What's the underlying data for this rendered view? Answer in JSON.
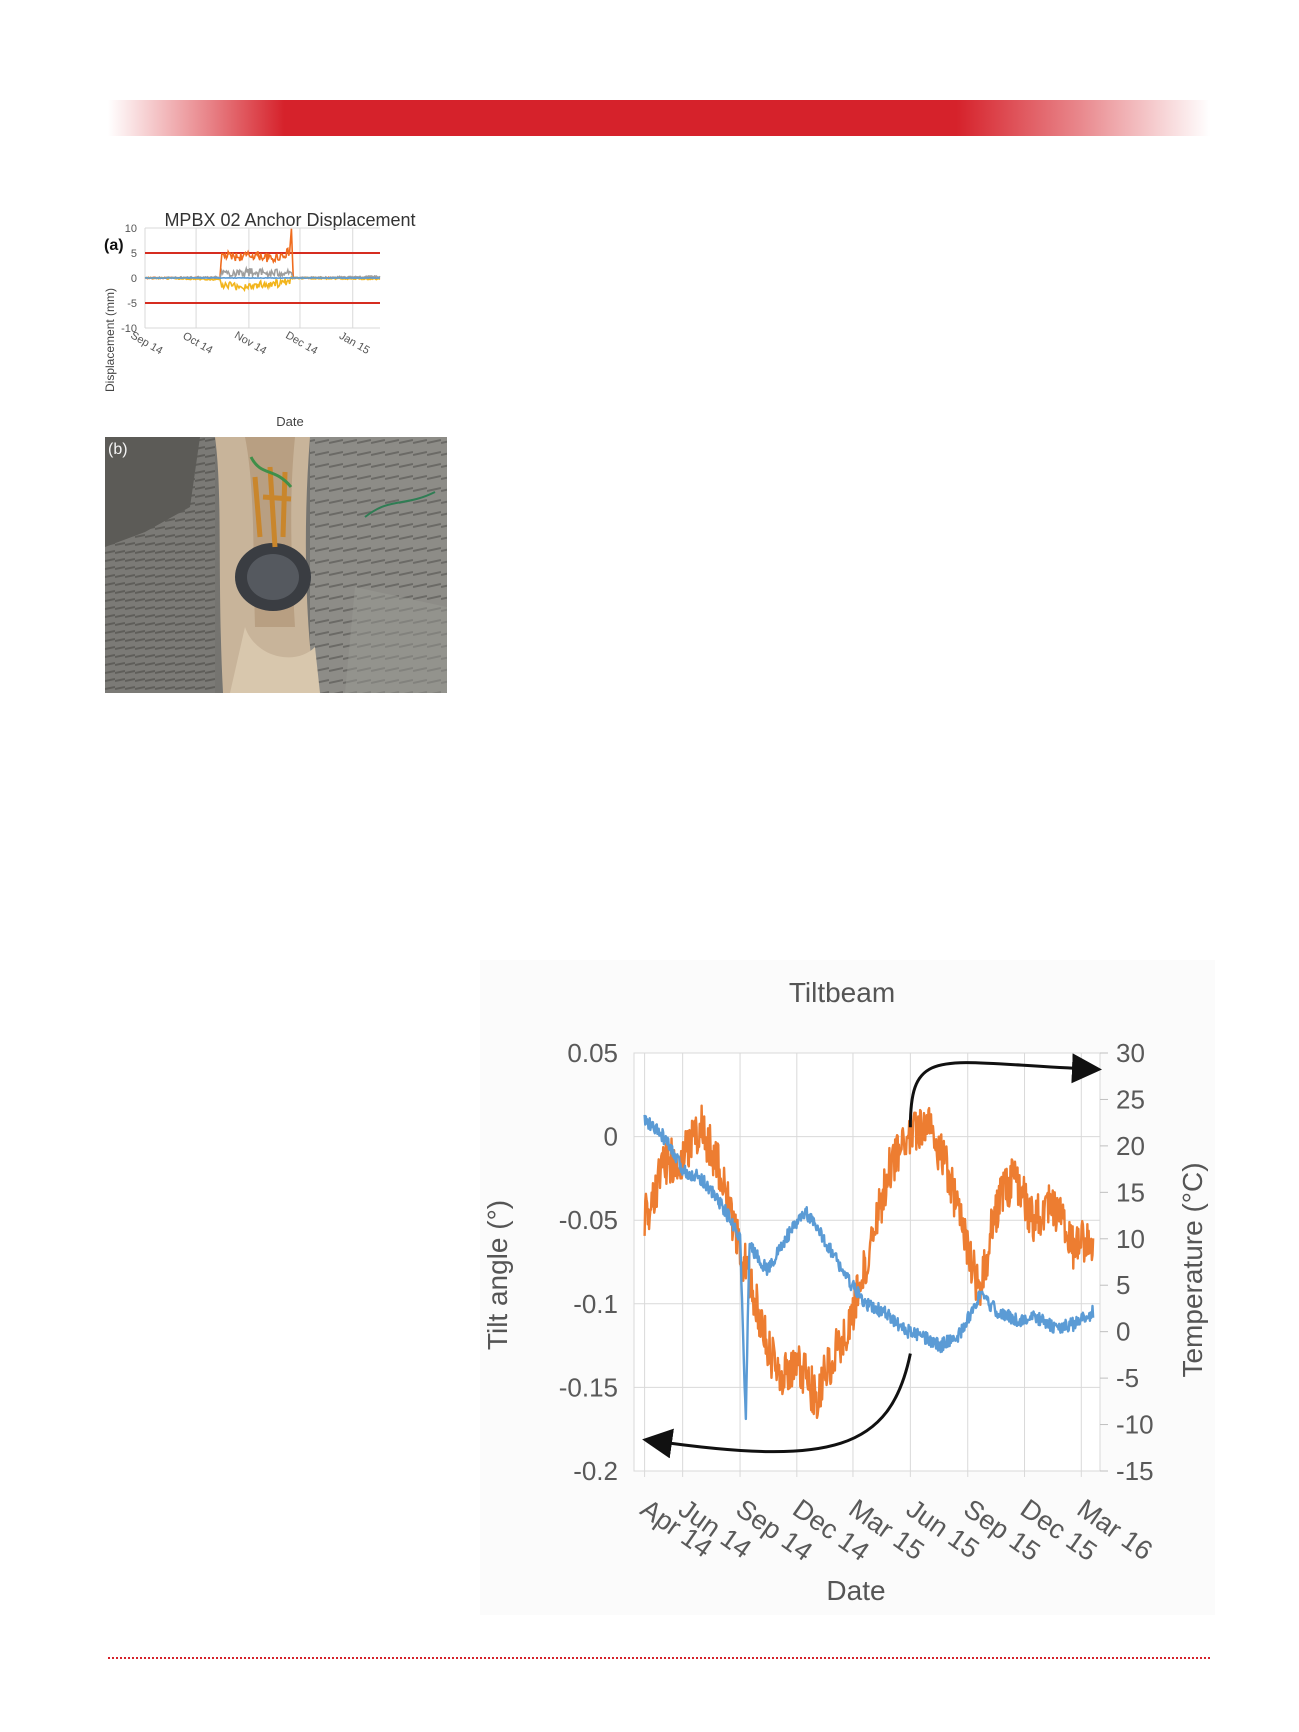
{
  "page": {
    "accent_color": "#d6222b"
  },
  "figure_a": {
    "title": "MPBX 02 Anchor Displacement",
    "panel_label": "(a)",
    "ylabel": "Displacement (mm)",
    "xlabel": "Date"
  },
  "figure_b": {
    "panel_label": "(b)",
    "description_icon": "rock-photo-icon"
  },
  "figure_c": {
    "title": "Tiltbeam",
    "ylabel_left": "Tilt angle (°)",
    "ylabel_right": "Temperature (°C)",
    "xlabel": "Date"
  },
  "chart_data": [
    {
      "type": "line",
      "title": "MPBX 02 Anchor Displacement",
      "xlabel": "Date",
      "ylabel": "Displacement (mm)",
      "x_ticks": [
        "Sep 14",
        "Oct 14",
        "Nov 14",
        "Dec 14",
        "Jan 15"
      ],
      "x_range": [
        "2014-09-01",
        "2015-01-17"
      ],
      "ylim": [
        -10,
        10
      ],
      "y_ticks": [
        10,
        5,
        0,
        -5,
        -10
      ],
      "grid": true,
      "threshold_lines": [
        5,
        -5
      ],
      "threshold_color": "#d62d20",
      "series": [
        {
          "color": "#ef6c1e",
          "points": [
            [
              "2014-09-01",
              0
            ],
            [
              "2014-10-15",
              0
            ],
            [
              "2014-10-16",
              4.5
            ],
            [
              "2014-10-25",
              4.2
            ],
            [
              "2014-11-05",
              4.6
            ],
            [
              "2014-11-15",
              3.8
            ],
            [
              "2014-11-25",
              5.2
            ],
            [
              "2014-11-26",
              10
            ],
            [
              "2014-11-27",
              0
            ],
            [
              "2015-01-17",
              0
            ]
          ]
        },
        {
          "color": "#9e9e9e",
          "points": [
            [
              "2014-09-01",
              0
            ],
            [
              "2014-10-15",
              0.2
            ],
            [
              "2014-10-16",
              1.0
            ],
            [
              "2014-11-01",
              1.2
            ],
            [
              "2014-11-15",
              0.8
            ],
            [
              "2014-11-25",
              1.5
            ],
            [
              "2014-11-27",
              0
            ],
            [
              "2015-01-17",
              0.3
            ]
          ]
        },
        {
          "color": "#f2b51d",
          "points": [
            [
              "2014-09-01",
              0
            ],
            [
              "2014-10-15",
              -0.3
            ],
            [
              "2014-10-16",
              -1.5
            ],
            [
              "2014-10-28",
              -1.8
            ],
            [
              "2014-11-10",
              -1.2
            ],
            [
              "2014-11-25",
              -1.0
            ],
            [
              "2014-11-27",
              0
            ],
            [
              "2015-01-17",
              -0.2
            ]
          ]
        },
        {
          "color": "#5b9bd5",
          "points": [
            [
              "2014-09-01",
              0
            ],
            [
              "2014-10-15",
              0
            ],
            [
              "2014-11-27",
              0
            ],
            [
              "2015-01-17",
              0
            ]
          ]
        }
      ]
    },
    {
      "type": "line",
      "title": "Tiltbeam",
      "xlabel": "Date",
      "ylabel": "Tilt angle (°)",
      "y2label": "Temperature (°C)",
      "x_ticks": [
        "Apr 14",
        "Jun 14",
        "Sep 14",
        "Dec 14",
        "Mar 15",
        "Jun 15",
        "Sep 15",
        "Dec 15",
        "Mar 16"
      ],
      "x_range": [
        "2014-03-15",
        "2016-03-31"
      ],
      "ylim": [
        -0.2,
        0.05
      ],
      "y_ticks": [
        0.05,
        0,
        -0.05,
        -0.1,
        -0.15,
        -0.2
      ],
      "y2lim": [
        -15,
        30
      ],
      "y2_ticks": [
        30,
        25,
        20,
        15,
        10,
        5,
        0,
        -5,
        -10,
        -15
      ],
      "grid": true,
      "series": [
        {
          "axis": "left",
          "color": "#5b9bd5",
          "noise": 0.004,
          "points": [
            [
              "2014-04-01",
              0.01
            ],
            [
              "2014-05-01",
              0
            ],
            [
              "2014-06-01",
              -0.02
            ],
            [
              "2014-07-01",
              -0.025
            ],
            [
              "2014-08-01",
              -0.04
            ],
            [
              "2014-09-01",
              -0.06
            ],
            [
              "2014-09-10",
              -0.17
            ],
            [
              "2014-09-16",
              -0.065
            ],
            [
              "2014-10-15",
              -0.08
            ],
            [
              "2014-11-15",
              -0.06
            ],
            [
              "2014-12-15",
              -0.045
            ],
            [
              "2015-01-20",
              -0.065
            ],
            [
              "2015-02-20",
              -0.085
            ],
            [
              "2015-03-20",
              -0.1
            ],
            [
              "2015-04-20",
              -0.105
            ],
            [
              "2015-05-20",
              -0.115
            ],
            [
              "2015-06-20",
              -0.12
            ],
            [
              "2015-07-20",
              -0.125
            ],
            [
              "2015-08-20",
              -0.118
            ],
            [
              "2015-09-20",
              -0.095
            ],
            [
              "2015-10-20",
              -0.105
            ],
            [
              "2015-11-20",
              -0.11
            ],
            [
              "2015-12-20",
              -0.108
            ],
            [
              "2016-01-20",
              -0.115
            ],
            [
              "2016-02-20",
              -0.112
            ],
            [
              "2016-03-20",
              -0.105
            ]
          ]
        },
        {
          "axis": "right",
          "color": "#ed7d31",
          "noise": 2.5,
          "points": [
            [
              "2014-04-01",
              12
            ],
            [
              "2014-05-01",
              18
            ],
            [
              "2014-06-01",
              19
            ],
            [
              "2014-07-01",
              22
            ],
            [
              "2014-08-01",
              17
            ],
            [
              "2014-09-01",
              9
            ],
            [
              "2014-10-01",
              2
            ],
            [
              "2014-11-01",
              -5
            ],
            [
              "2014-12-01",
              -3
            ],
            [
              "2015-01-01",
              -7
            ],
            [
              "2015-02-01",
              -2
            ],
            [
              "2015-03-01",
              2
            ],
            [
              "2015-04-01",
              10
            ],
            [
              "2015-05-01",
              18
            ],
            [
              "2015-06-01",
              21
            ],
            [
              "2015-07-01",
              22
            ],
            [
              "2015-08-01",
              17
            ],
            [
              "2015-09-01",
              9
            ],
            [
              "2015-09-20",
              4
            ],
            [
              "2015-10-15",
              13
            ],
            [
              "2015-11-15",
              17
            ],
            [
              "2015-12-15",
              12
            ],
            [
              "2016-01-15",
              14
            ],
            [
              "2016-02-15",
              9
            ],
            [
              "2016-03-20",
              10
            ]
          ]
        }
      ],
      "annotations": [
        {
          "type": "arrow",
          "meaning": "orange series to right axis"
        },
        {
          "type": "arrow",
          "meaning": "blue series to left axis"
        }
      ]
    }
  ]
}
